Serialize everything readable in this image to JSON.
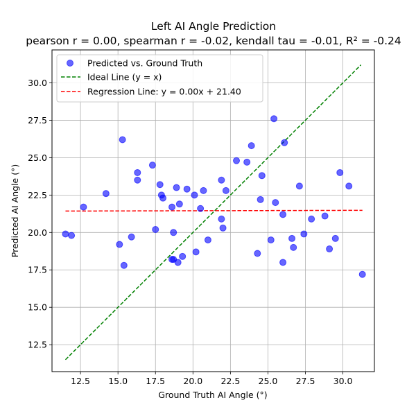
{
  "chart_data": {
    "type": "scatter",
    "title": "Left AI Angle Prediction",
    "subtitle": "pearson r = 0.00, spearman r = -0.02, kendall tau = -0.01, R² = -0.24",
    "xlabel": "Ground Truth AI Angle (°)",
    "ylabel": "Predicted AI Angle (°)",
    "xlim": [
      10.6,
      32.1
    ],
    "ylim": [
      10.7,
      32.2
    ],
    "xticks": [
      "12.5",
      "15.0",
      "17.5",
      "20.0",
      "22.5",
      "25.0",
      "27.5",
      "30.0"
    ],
    "yticks": [
      "12.5",
      "15.0",
      "17.5",
      "20.0",
      "22.5",
      "25.0",
      "27.5",
      "30.0"
    ],
    "xtick_values": [
      12.5,
      15.0,
      17.5,
      20.0,
      22.5,
      25.0,
      27.5,
      30.0
    ],
    "ytick_values": [
      12.5,
      15.0,
      17.5,
      20.0,
      22.5,
      25.0,
      27.5,
      30.0
    ],
    "grid": true,
    "legend_position": "top-left",
    "series": [
      {
        "name": "Predicted vs. Ground Truth",
        "kind": "scatter",
        "color": "#0000ff",
        "points": [
          [
            11.5,
            19.9
          ],
          [
            11.9,
            19.8
          ],
          [
            12.7,
            21.7
          ],
          [
            14.2,
            22.6
          ],
          [
            15.1,
            19.2
          ],
          [
            15.3,
            26.2
          ],
          [
            15.4,
            17.8
          ],
          [
            15.9,
            19.7
          ],
          [
            16.3,
            24.0
          ],
          [
            16.3,
            23.5
          ],
          [
            17.3,
            24.5
          ],
          [
            17.5,
            20.2
          ],
          [
            17.8,
            23.2
          ],
          [
            17.9,
            22.5
          ],
          [
            18.0,
            22.3
          ],
          [
            18.6,
            21.7
          ],
          [
            18.7,
            20.0
          ],
          [
            18.6,
            18.2
          ],
          [
            18.7,
            18.2
          ],
          [
            18.9,
            23.0
          ],
          [
            19.0,
            18.0
          ],
          [
            19.1,
            21.9
          ],
          [
            19.3,
            18.4
          ],
          [
            19.6,
            22.9
          ],
          [
            20.1,
            22.5
          ],
          [
            20.2,
            18.7
          ],
          [
            20.5,
            21.6
          ],
          [
            20.7,
            22.8
          ],
          [
            21.0,
            19.5
          ],
          [
            21.9,
            23.5
          ],
          [
            21.9,
            20.9
          ],
          [
            22.0,
            20.3
          ],
          [
            22.2,
            22.8
          ],
          [
            22.9,
            24.8
          ],
          [
            23.6,
            24.7
          ],
          [
            23.9,
            25.8
          ],
          [
            24.3,
            18.6
          ],
          [
            24.5,
            22.2
          ],
          [
            24.6,
            23.8
          ],
          [
            25.2,
            19.5
          ],
          [
            25.4,
            27.6
          ],
          [
            25.5,
            22.0
          ],
          [
            26.0,
            21.2
          ],
          [
            26.0,
            18.0
          ],
          [
            26.1,
            26.0
          ],
          [
            26.6,
            19.6
          ],
          [
            26.7,
            19.0
          ],
          [
            27.1,
            23.1
          ],
          [
            27.4,
            19.9
          ],
          [
            27.9,
            20.9
          ],
          [
            28.8,
            21.1
          ],
          [
            29.1,
            18.9
          ],
          [
            29.5,
            19.6
          ],
          [
            29.8,
            24.0
          ],
          [
            30.4,
            23.1
          ],
          [
            31.3,
            17.2
          ]
        ]
      },
      {
        "name": "Ideal Line (y = x)",
        "kind": "line",
        "color": "#008000",
        "dash": "dashed",
        "points": [
          [
            11.5,
            11.5
          ],
          [
            31.2,
            31.2
          ]
        ]
      },
      {
        "name": "Regression Line: y = 0.00x + 21.40",
        "kind": "line",
        "color": "#ff0000",
        "dash": "dashed",
        "points": [
          [
            11.5,
            21.43
          ],
          [
            31.3,
            21.48
          ]
        ]
      }
    ]
  }
}
